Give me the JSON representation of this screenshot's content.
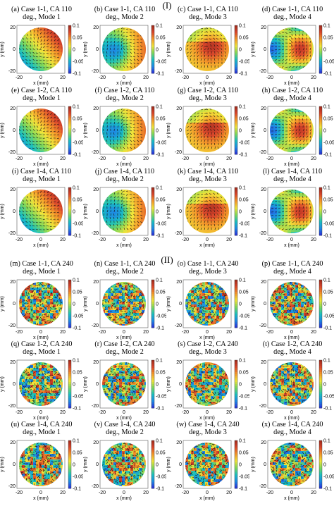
{
  "figure": {
    "sections": [
      {
        "label": "(I)",
        "panels": [
          {
            "title_line1": "(a)   Case 1-1, CA 110",
            "title_line2": "deg., Mode 1",
            "pattern": 0
          },
          {
            "title_line1": "(b)   Case 1-1, CA 110",
            "title_line2": "deg., Mode 2",
            "pattern": 1
          },
          {
            "title_line1": "(c)   Case 1-1, CA 110",
            "title_line2": "deg., Mode 3",
            "pattern": 2
          },
          {
            "title_line1": "(d)   Case 1-1, CA 110",
            "title_line2": "deg., Mode 4",
            "pattern": 3
          },
          {
            "title_line1": "(e)   Case 1-2, CA 110",
            "title_line2": "deg., Mode 1",
            "pattern": 0
          },
          {
            "title_line1": "(f)   Case 1-2, CA 110",
            "title_line2": "deg., Mode 2",
            "pattern": 1
          },
          {
            "title_line1": "(g)   Case 1-2, CA 110",
            "title_line2": "deg., Mode 3",
            "pattern": 2
          },
          {
            "title_line1": "(h)   Case 1-2, CA 110",
            "title_line2": "deg., Mode 4",
            "pattern": 3
          },
          {
            "title_line1": "(i)   Case 1-4, CA 110",
            "title_line2": "deg., Mode 1",
            "pattern": 0
          },
          {
            "title_line1": "(j)   Case 1-4, CA 110",
            "title_line2": "deg., Mode 2",
            "pattern": 1
          },
          {
            "title_line1": "(k)   Case 1-4, CA 110",
            "title_line2": "deg., Mode 3",
            "pattern": 2
          },
          {
            "title_line1": "(l)   Case 1-4, CA 110",
            "title_line2": "deg., Mode 4",
            "pattern": 3
          }
        ]
      },
      {
        "label": "(II)",
        "panels": [
          {
            "title_line1": "(m)   Case 1-1, CA 240",
            "title_line2": "deg., Mode 1",
            "pattern": 4
          },
          {
            "title_line1": "(n)   Case 1-1, CA 240",
            "title_line2": "deg., Mode 2",
            "pattern": 4
          },
          {
            "title_line1": "(o)   Case 1-1, CA 240",
            "title_line2": "deg., Mode 3",
            "pattern": 4
          },
          {
            "title_line1": "(p)   Case 1-1, CA 240",
            "title_line2": "deg., Mode 4",
            "pattern": 4
          },
          {
            "title_line1": "(q)   Case 1-2, CA 240",
            "title_line2": "deg., Mode 1",
            "pattern": 4
          },
          {
            "title_line1": "(r)   Case 1-2, CA 240",
            "title_line2": "deg., Mode 2",
            "pattern": 4
          },
          {
            "title_line1": "(s)   Case 1-2, CA 240",
            "title_line2": "deg., Mode 3",
            "pattern": 4
          },
          {
            "title_line1": "(t)   Case 1-2, CA 240",
            "title_line2": "deg., Mode 4",
            "pattern": 4
          },
          {
            "title_line1": "(u)   Case 1-4, CA 240",
            "title_line2": "deg., Mode 1",
            "pattern": 4
          },
          {
            "title_line1": "(v)   Case 1-4, CA 240",
            "title_line2": "deg., Mode 2",
            "pattern": 4
          },
          {
            "title_line1": "(w)   Case 1-4, CA 240",
            "title_line2": "deg., Mode 3",
            "pattern": 4
          },
          {
            "title_line1": "(x)   Case 1-4, CA 240",
            "title_line2": "deg., Mode 4",
            "pattern": 4
          }
        ]
      }
    ],
    "axes": {
      "xlabel": "x (mm)",
      "ylabel": "y (mm)",
      "xticks": [
        "-20",
        "0",
        "20"
      ],
      "yticks": [
        "20",
        "0",
        "-20"
      ],
      "colorbar_ticks": [
        "0.1",
        "0.05",
        "0",
        "-0.05",
        "-0.1"
      ],
      "colorbar_range": [
        -0.1,
        0.1
      ],
      "colormap": [
        "#2b2bd6",
        "#1e88e5",
        "#19c0c0",
        "#7fd85a",
        "#f2e43a",
        "#f3962a",
        "#d8452b",
        "#9c2a1c"
      ]
    }
  }
}
